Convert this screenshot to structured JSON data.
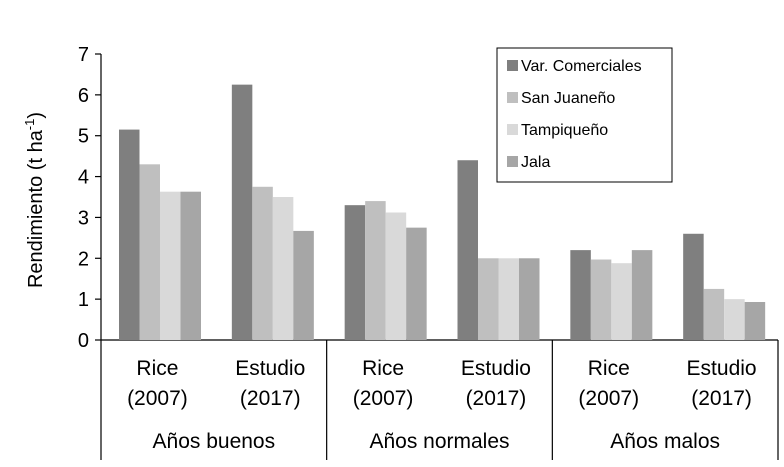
{
  "chart_data": {
    "type": "bar",
    "ylabel": "Rendimiento (t ha",
    "ylabel_sup": "-1",
    "ylabel_close": ")",
    "ylim": [
      0,
      7
    ],
    "yticks": [
      "0",
      "1",
      "2",
      "3",
      "4",
      "5",
      "6",
      "7"
    ],
    "grid": false,
    "legend_position": "top-right",
    "categories": [
      {
        "line1": "Rice",
        "line2": "(2007)"
      },
      {
        "line1": "Estudio",
        "line2": "(2017)"
      },
      {
        "line1": "Rice",
        "line2": "(2007)"
      },
      {
        "line1": "Estudio",
        "line2": "(2017)"
      },
      {
        "line1": "Rice",
        "line2": "(2007)"
      },
      {
        "line1": "Estudio",
        "line2": "(2017)"
      }
    ],
    "groups": [
      "Años buenos",
      "Años normales",
      "Años malos"
    ],
    "series": [
      {
        "name": "Var. Comerciales",
        "color": "#7f7f7f",
        "values": [
          5.15,
          6.25,
          3.3,
          4.4,
          2.2,
          2.6
        ]
      },
      {
        "name": "San Juaneño",
        "color": "#bfbfbf",
        "values": [
          4.3,
          3.75,
          3.4,
          2.0,
          1.97,
          1.25
        ]
      },
      {
        "name": "Tampiqueño",
        "color": "#d9d9d9",
        "values": [
          3.63,
          3.5,
          3.12,
          2.0,
          1.88,
          1.0
        ]
      },
      {
        "name": "Jala",
        "color": "#a6a6a6",
        "values": [
          3.63,
          2.67,
          2.75,
          2.0,
          2.2,
          0.93
        ]
      }
    ]
  }
}
